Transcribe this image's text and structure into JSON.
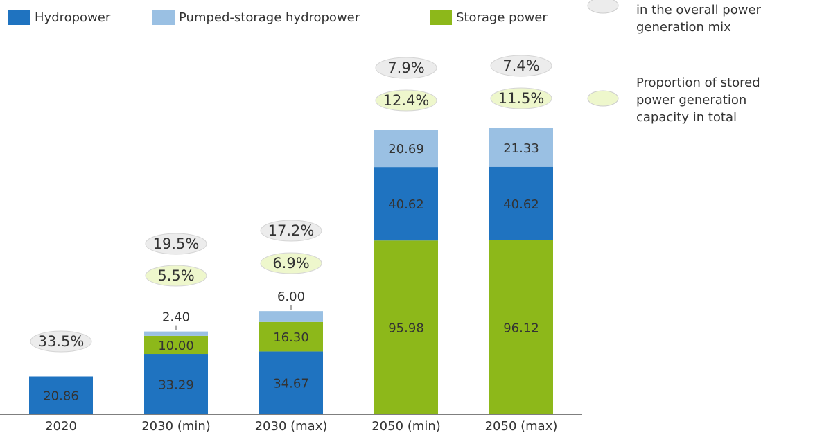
{
  "chart_data": {
    "type": "bar",
    "stacked": true,
    "categories": [
      "2020",
      "2030 (min)",
      "2030 (max)",
      "2050 (min)",
      "2050 (max)"
    ],
    "series": [
      {
        "name": "Hydropower",
        "color": "#1f73c0",
        "values": [
          20.86,
          33.29,
          34.67,
          40.62,
          40.62
        ],
        "value_labels": [
          "20.86",
          "33.29",
          "34.67",
          "40.62",
          "40.62"
        ]
      },
      {
        "name": "Pumped-storage hydropower",
        "color": "#9ac0e3",
        "values": [
          null,
          2.4,
          6,
          20.69,
          21.33
        ],
        "value_labels": [
          null,
          "2.40",
          "6.00",
          "20.69",
          "21.33"
        ]
      },
      {
        "name": "Storage power",
        "color": "#8db81a",
        "values": [
          null,
          10,
          16.3,
          95.98,
          96.12
        ],
        "value_labels": [
          null,
          "10.00",
          "16.30",
          "95.98",
          "96.12"
        ]
      }
    ],
    "ratio_series": [
      {
        "lines": [
          "related generation capacity",
          "in the overall power",
          "generation mix"
        ],
        "color": "#ececec",
        "values": [
          33.5,
          19.5,
          17.2,
          7.9,
          7.4
        ],
        "value_labels": [
          "33.5%",
          "19.5%",
          "17.2%",
          "7.9%",
          "7.4%"
        ]
      },
      {
        "lines": [
          "Proportion of stored",
          "power generation",
          "capacity in total"
        ],
        "color": "#eef7cc",
        "values": [
          null,
          5.5,
          6.9,
          12.4,
          11.5
        ],
        "value_labels": [
          null,
          "5.5%",
          "6.9%",
          "12.4%",
          "11.5%"
        ]
      }
    ]
  }
}
